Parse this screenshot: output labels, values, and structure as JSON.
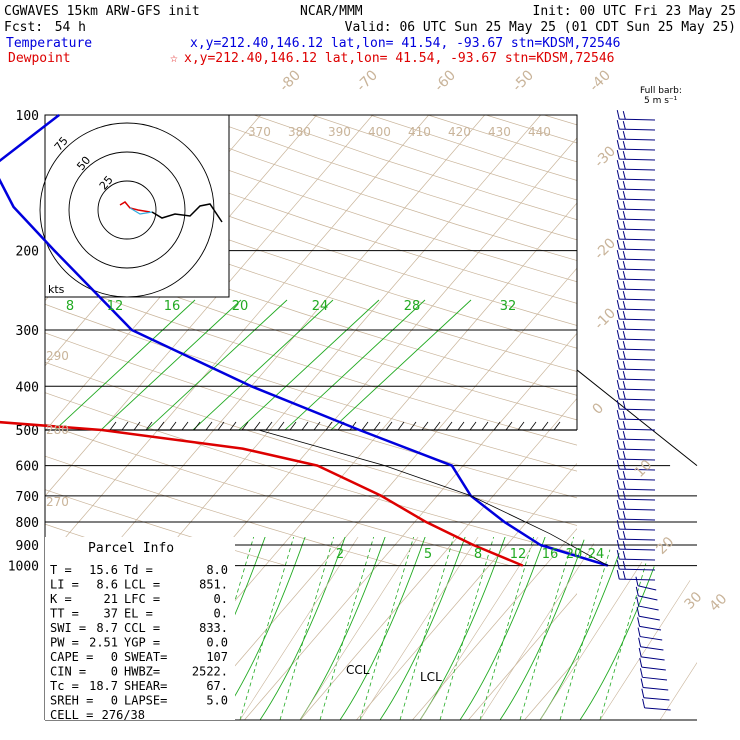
{
  "header": {
    "model": "CGWAVES 15km ARW-GFS init",
    "org": "NCAR/MMM",
    "init": "Init: 00 UTC Fri 23 May 25",
    "fcst_label": "Fcst:",
    "fcst_value": "54 h",
    "valid": "Valid: 06 UTC Sun 25 May 25 (01 CDT Sun 25 May 25)",
    "temp_label": "Temperature",
    "dew_label": "Dewpoint",
    "temp_loc": "x,y=212.40,146.12   lat,lon= 41.54, -93.67   stn=KDSM,72546",
    "dew_marker": "☆",
    "dew_loc": "x,y=212.40,146.12   lat,lon= 41.54, -93.67   stn=KDSM,72546",
    "barb_title_1": "Full barb:",
    "barb_title_2": "5 m s⁻¹"
  },
  "colors": {
    "temperature": "#0000dd",
    "dewpoint": "#dd0000",
    "isotherm": "#c9b49a",
    "mixing_ratio": "#22aa22",
    "barb": "#000080",
    "hodo_inner": "#33aadd"
  },
  "hodograph": {
    "ring_labels": [
      "75",
      "50",
      "25"
    ],
    "units": "kts"
  },
  "chart_data": {
    "type": "line",
    "title": "",
    "pressure_ticks": [
      "100",
      "200",
      "300",
      "400",
      "500",
      "600",
      "700",
      "800",
      "900",
      "1000"
    ],
    "pressure_values": [
      100,
      200,
      300,
      400,
      500,
      600,
      700,
      800,
      900,
      1000
    ],
    "isotherm_labels": [
      "-80",
      "-70",
      "-60",
      "-50",
      "-40",
      "-30",
      "-20",
      "-10",
      "0",
      "10",
      "20",
      "30",
      "40"
    ],
    "theta_labels_top": [
      "370",
      "380",
      "390",
      "400",
      "410",
      "420",
      "430",
      "440"
    ],
    "theta_labels_left": [
      "290",
      "280",
      "270"
    ],
    "mixing_ratio_upper": [
      "8",
      "12",
      "16",
      "20",
      "24",
      "28",
      "32"
    ],
    "mixing_ratio_lower": [
      "2",
      "5",
      "8",
      "12",
      "16",
      "20",
      "24"
    ],
    "ccl_label": "CCL",
    "lcl_label": "LCL",
    "series": [
      {
        "name": "Temperature",
        "points": [
          [
            100,
            -68
          ],
          [
            130,
            -70
          ],
          [
            160,
            -65
          ],
          [
            200,
            -58
          ],
          [
            300,
            -45
          ],
          [
            400,
            -30
          ],
          [
            500,
            -17
          ],
          [
            600,
            -6
          ],
          [
            700,
            -2
          ],
          [
            800,
            3
          ],
          [
            900,
            8
          ],
          [
            1000,
            15.6
          ]
        ]
      },
      {
        "name": "Dewpoint",
        "points": [
          [
            100,
            -80
          ],
          [
            140,
            -85
          ],
          [
            200,
            -80
          ],
          [
            250,
            -78
          ],
          [
            300,
            -72
          ],
          [
            380,
            -62
          ],
          [
            470,
            -55
          ],
          [
            500,
            -40
          ],
          [
            550,
            -26
          ],
          [
            600,
            -18
          ],
          [
            700,
            -10
          ],
          [
            800,
            -4
          ],
          [
            900,
            2
          ],
          [
            1000,
            8.0
          ]
        ]
      }
    ],
    "parcel_info": {
      "title": "Parcel Info",
      "rows": [
        [
          "T =",
          "15.6",
          "Td =",
          "8.0"
        ],
        [
          "LI =",
          "8.6",
          "LCL =",
          "851."
        ],
        [
          "K =",
          "21",
          "LFC =",
          "0."
        ],
        [
          "TT =",
          "37",
          "EL =",
          "0."
        ],
        [
          "SWI =",
          "8.7",
          "CCL =",
          "833."
        ],
        [
          "PW =",
          "2.51",
          "YGP =",
          "0.0"
        ],
        [
          "CAPE =",
          "0",
          "SWEAT=",
          "107"
        ],
        [
          "CIN =",
          "0",
          "HWBZ=",
          "2522."
        ],
        [
          "Tc =",
          "18.7",
          "SHEAR=",
          "67."
        ],
        [
          "SREH =",
          "0",
          "LAPSE=",
          "5.0"
        ],
        [
          "CELL =",
          "276/38",
          "",
          ""
        ]
      ]
    }
  }
}
